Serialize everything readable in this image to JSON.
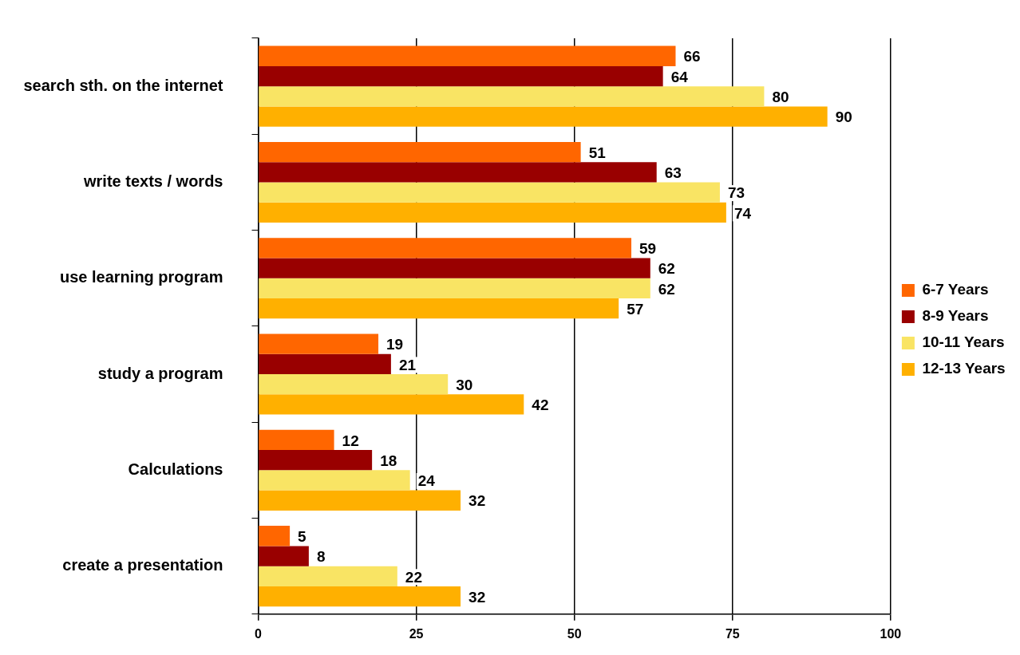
{
  "chart_data": {
    "type": "bar",
    "orientation": "horizontal",
    "categories": [
      "search sth. on the internet",
      "write texts / words",
      "use learning program",
      "study a program",
      "Calculations",
      "create a presentation"
    ],
    "series": [
      {
        "name": "6-7 Years",
        "color": "#ff6600",
        "values": [
          66,
          51,
          59,
          19,
          12,
          5
        ]
      },
      {
        "name": "8-9 Years",
        "color": "#990000",
        "values": [
          64,
          63,
          62,
          21,
          18,
          8
        ]
      },
      {
        "name": "10-11 Years",
        "color": "#f9e464",
        "values": [
          80,
          73,
          62,
          30,
          24,
          22
        ]
      },
      {
        "name": "12-13 Years",
        "color": "#ffb000",
        "values": [
          90,
          74,
          57,
          42,
          32,
          32
        ]
      }
    ],
    "xlim": [
      0,
      100
    ],
    "xticks": [
      0,
      25,
      50,
      75,
      100
    ],
    "grid": "x",
    "legend": "right",
    "data_labels": true
  }
}
